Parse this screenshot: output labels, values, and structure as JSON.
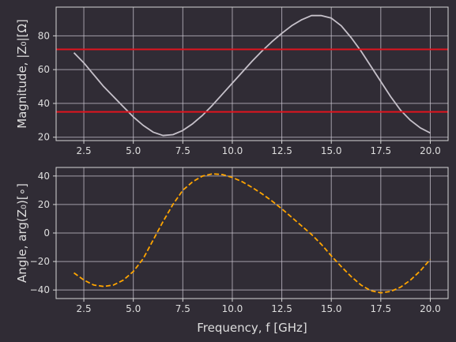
{
  "chart_data": [
    {
      "type": "line",
      "ylabel": "Magnitude, |Z₀|[Ω]",
      "xlabel": "",
      "xlim": [
        1.1,
        20.9
      ],
      "ylim": [
        18,
        97
      ],
      "xticks": [
        2.5,
        5.0,
        7.5,
        10.0,
        12.5,
        15.0,
        17.5,
        20.0
      ],
      "xtick_labels": [
        "2.5",
        "5.0",
        "7.5",
        "10.0",
        "12.5",
        "15.0",
        "17.5",
        "20.0"
      ],
      "yticks": [
        20,
        40,
        60,
        80
      ],
      "ytick_labels": [
        "20",
        "40",
        "60",
        "80"
      ],
      "grid": true,
      "series": [
        {
          "style": "solid",
          "color": "#c6c1ca",
          "x": [
            2.0,
            2.5,
            3.0,
            3.5,
            4.0,
            4.5,
            5.0,
            5.5,
            6.0,
            6.5,
            7.0,
            7.5,
            8.0,
            8.5,
            9.0,
            9.5,
            10.0,
            10.5,
            11.0,
            11.5,
            12.0,
            12.5,
            13.0,
            13.5,
            14.0,
            14.5,
            15.0,
            15.5,
            16.0,
            16.5,
            17.0,
            17.5,
            18.0,
            18.5,
            19.0,
            19.5,
            20.0
          ],
          "y": [
            70,
            64,
            57,
            50,
            44,
            38,
            32,
            27,
            23,
            21,
            21.5,
            24,
            28,
            33,
            39,
            45.5,
            52,
            58.5,
            65,
            71,
            76.5,
            81.5,
            86,
            89.5,
            92,
            92,
            90.5,
            86,
            79,
            71,
            62,
            53,
            44,
            36,
            30,
            25.5,
            22.5
          ]
        },
        {
          "style": "solid",
          "color": "#e0141e",
          "x": [
            1.1,
            20.9
          ],
          "y": [
            72,
            72
          ]
        },
        {
          "style": "solid",
          "color": "#e0141e",
          "x": [
            1.1,
            20.9
          ],
          "y": [
            35,
            35
          ]
        }
      ]
    },
    {
      "type": "line",
      "ylabel": "Angle, arg(Z₀)[∘]",
      "xlabel": "Frequency, f [GHz]",
      "xlim": [
        1.1,
        20.9
      ],
      "ylim": [
        -46,
        46
      ],
      "xticks": [
        2.5,
        5.0,
        7.5,
        10.0,
        12.5,
        15.0,
        17.5,
        20.0
      ],
      "xtick_labels": [
        "2.5",
        "5.0",
        "7.5",
        "10.0",
        "12.5",
        "15.0",
        "17.5",
        "20.0"
      ],
      "yticks": [
        -40,
        -20,
        0,
        20,
        40
      ],
      "ytick_labels": [
        "−40",
        "−20",
        "0",
        "20",
        "40"
      ],
      "grid": true,
      "series": [
        {
          "style": "dashed",
          "color": "#ffa500",
          "x": [
            2.0,
            2.5,
            3.0,
            3.5,
            4.0,
            4.5,
            5.0,
            5.5,
            6.0,
            6.5,
            7.0,
            7.5,
            8.0,
            8.5,
            9.0,
            9.5,
            10.0,
            10.5,
            11.0,
            11.5,
            12.0,
            12.5,
            13.0,
            13.5,
            14.0,
            14.5,
            15.0,
            15.5,
            16.0,
            16.5,
            17.0,
            17.5,
            18.0,
            18.5,
            19.0,
            19.5,
            20.0
          ],
          "y": [
            -28,
            -33,
            -36.5,
            -37.5,
            -36.5,
            -33,
            -27,
            -18,
            -5,
            8,
            20,
            30,
            36,
            40,
            41.5,
            41,
            39,
            36,
            32,
            27.5,
            22.5,
            17,
            11,
            5,
            -1,
            -8,
            -16,
            -23.5,
            -30.5,
            -36.5,
            -40.5,
            -42,
            -41,
            -38,
            -33,
            -26.5,
            -18.5
          ]
        }
      ]
    }
  ]
}
